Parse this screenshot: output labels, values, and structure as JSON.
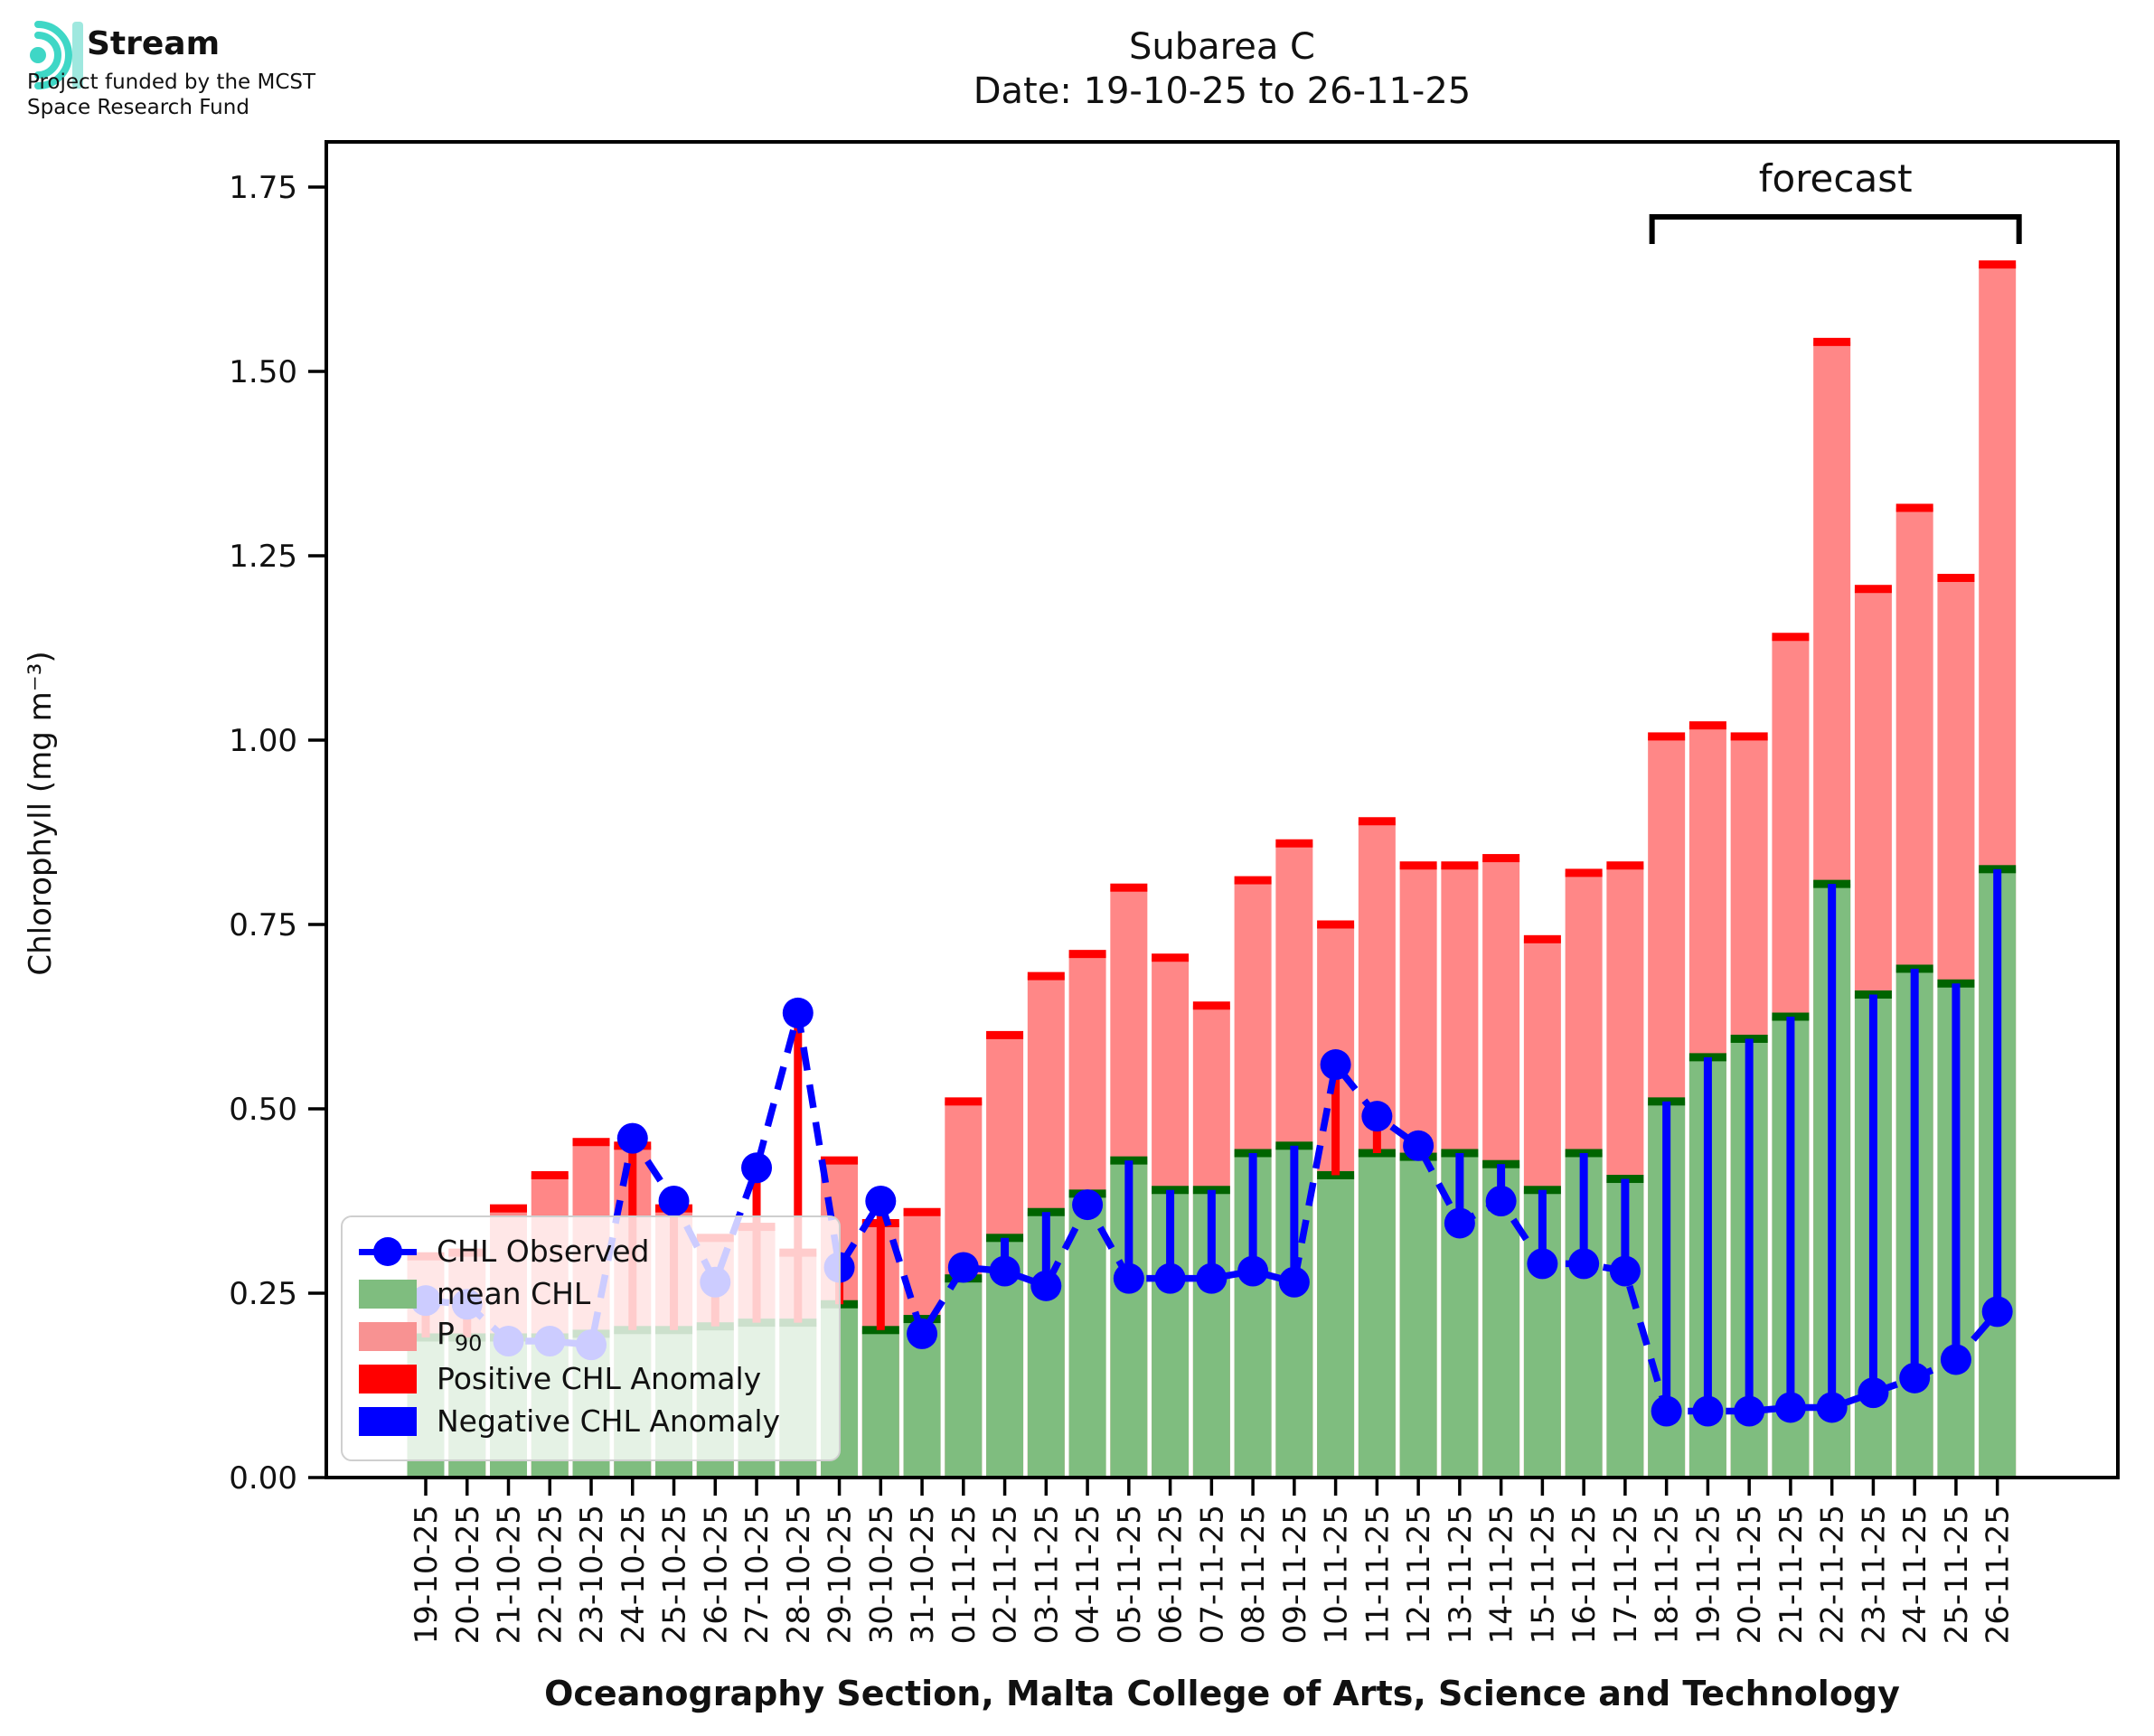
{
  "logo": {
    "brand": "Stream",
    "funding_line1": "Project funded by the MCST",
    "funding_line2": "Space Research Fund",
    "icon_color": "#3fd7c6"
  },
  "title": {
    "line1": "Subarea C",
    "line2": "Date: 19-10-25 to 26-11-25"
  },
  "legend": {
    "observed": "CHL Observed",
    "mean": "mean CHL",
    "p90_main": "P",
    "p90_sub": "90",
    "positive": "Positive CHL Anomaly",
    "negative": "Negative CHL Anomaly"
  },
  "chart_data": {
    "type": "bar",
    "title": "Subarea C",
    "subtitle": "Date: 19-10-25 to 26-11-25",
    "xlabel": "Oceanography Section, Malta College of Arts, Science and Technology",
    "ylabel": "Chlorophyll (mg m⁻³)",
    "ylim": [
      0,
      1.8
    ],
    "grid": false,
    "legend_position": "lower-left",
    "yticks": [
      "0.00",
      "0.25",
      "0.50",
      "0.75",
      "1.00",
      "1.25",
      "1.50",
      "1.75"
    ],
    "ytick_values": [
      0,
      0.25,
      0.5,
      0.75,
      1.0,
      1.25,
      1.5,
      1.75
    ],
    "categories": [
      "19-10-25",
      "20-10-25",
      "21-10-25",
      "22-10-25",
      "23-10-25",
      "24-10-25",
      "25-10-25",
      "26-10-25",
      "27-10-25",
      "28-10-25",
      "29-10-25",
      "30-10-25",
      "31-10-25",
      "01-11-25",
      "02-11-25",
      "03-11-25",
      "04-11-25",
      "05-11-25",
      "06-11-25",
      "07-11-25",
      "08-11-25",
      "09-11-25",
      "10-11-25",
      "11-11-25",
      "12-11-25",
      "13-11-25",
      "14-11-25",
      "15-11-25",
      "16-11-25",
      "17-11-25",
      "18-11-25",
      "19-11-25",
      "20-11-25",
      "21-11-25",
      "22-11-25",
      "23-11-25",
      "24-11-25",
      "25-11-25",
      "26-11-25"
    ],
    "series": [
      {
        "name": "P90",
        "kind": "bar",
        "values": [
          0.3,
          0.305,
          0.365,
          0.41,
          0.455,
          0.45,
          0.365,
          0.325,
          0.34,
          0.305,
          0.43,
          0.345,
          0.36,
          0.51,
          0.6,
          0.68,
          0.71,
          0.8,
          0.705,
          0.64,
          0.81,
          0.86,
          0.75,
          0.89,
          0.83,
          0.83,
          0.84,
          0.73,
          0.82,
          0.83,
          1.005,
          1.02,
          1.005,
          1.14,
          1.54,
          1.205,
          1.315,
          1.22,
          1.645
        ]
      },
      {
        "name": "mean CHL",
        "kind": "bar",
        "values": [
          0.19,
          0.19,
          0.19,
          0.19,
          0.195,
          0.2,
          0.2,
          0.205,
          0.21,
          0.21,
          0.235,
          0.2,
          0.215,
          0.27,
          0.325,
          0.36,
          0.385,
          0.43,
          0.39,
          0.39,
          0.44,
          0.45,
          0.41,
          0.44,
          0.435,
          0.44,
          0.425,
          0.39,
          0.44,
          0.405,
          0.51,
          0.57,
          0.595,
          0.625,
          0.805,
          0.655,
          0.69,
          0.67,
          0.825
        ]
      },
      {
        "name": "CHL Observed",
        "kind": "line+marker",
        "values": [
          0.24,
          0.235,
          0.185,
          0.185,
          0.18,
          0.46,
          0.375,
          0.265,
          0.42,
          0.63,
          0.285,
          0.375,
          0.195,
          0.285,
          0.28,
          0.26,
          0.37,
          0.27,
          0.27,
          0.27,
          0.28,
          0.265,
          0.56,
          0.49,
          0.45,
          0.345,
          0.375,
          0.29,
          0.29,
          0.28,
          0.09,
          0.09,
          0.09,
          0.095,
          0.095,
          0.115,
          0.135,
          0.16,
          0.225
        ]
      }
    ],
    "anomaly_rule": "positive where observed > mean (red), negative where observed < mean (blue)",
    "forecast": {
      "label": "forecast",
      "start_index": 30,
      "end_index": 38
    },
    "colors": {
      "p90_fill": "#ff8787",
      "p90_edge": "#ff0000",
      "mean_fill": "#7fbd7f",
      "mean_edge": "#006400",
      "observed": "#0000ff",
      "positive_anomaly": "#ff0000",
      "negative_anomaly": "#0000ff",
      "axis": "#000000"
    }
  }
}
